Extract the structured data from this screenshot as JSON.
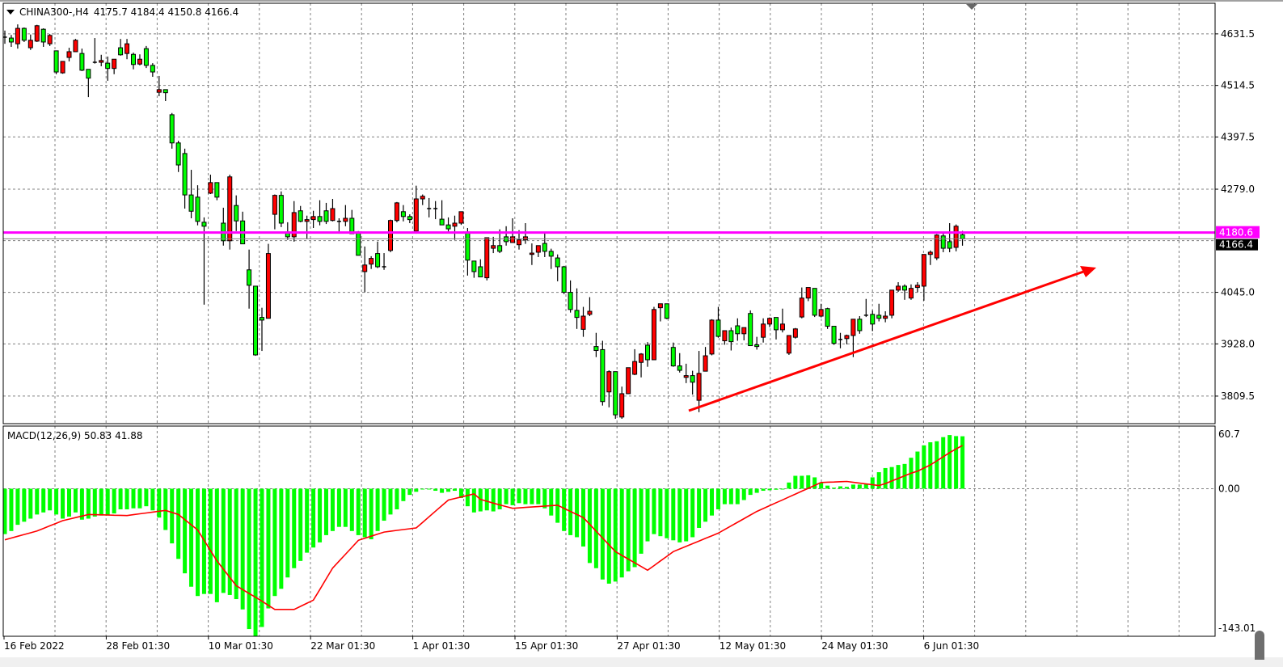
{
  "header": {
    "symbol_timeframe": "CHINA300-,H4",
    "ohlc": "4175.7 4184.4 4150.8 4166.4",
    "menu_icon": "triangle-down-icon"
  },
  "macd_label": "MACD(12,26,9) 50.83 41.88",
  "colors": {
    "bull": "#ff0000",
    "bear": "#00ff00",
    "macd_hist": "#00ff00",
    "signal": "#ff0000",
    "level_line": "#ff00ff",
    "trendline": "#ff0000",
    "grid": "#808080"
  },
  "chart_data": [
    {
      "type": "candlestick",
      "symbol": "CHINA300-",
      "timeframe": "H4",
      "ylim": [
        3747,
        4701
      ],
      "y_ticks": [
        "4631.5",
        "4514.5",
        "4397.5",
        "4279.0",
        "4045.0",
        "3928.0",
        "3809.5"
      ],
      "x_tick_labels": [
        "16 Feb 2022",
        "28 Feb 01:30",
        "10 Mar 01:30",
        "22 Mar 01:30",
        "1 Apr 01:30",
        "15 Apr 01:30",
        "27 Apr 01:30",
        "12 May 01:30",
        "24 May 01:30",
        "6 Jun 01:30"
      ],
      "horizontal_line": {
        "price": 4180.6,
        "label": "4180.6"
      },
      "bid_line": {
        "price": 4166.4,
        "label": "4166.4"
      },
      "ohlc": [
        [
          4622,
          4639,
          4609,
          4624
        ],
        [
          4622,
          4629,
          4602,
          4613
        ],
        [
          4609,
          4653,
          4598,
          4644
        ],
        [
          4644,
          4646,
          4613,
          4617
        ],
        [
          4600,
          4630,
          4595,
          4617
        ],
        [
          4615,
          4652,
          4613,
          4650
        ],
        [
          4642,
          4644,
          4602,
          4613
        ],
        [
          4609,
          4631,
          4604,
          4628
        ],
        [
          4593,
          4593,
          4540,
          4545
        ],
        [
          4543,
          4569,
          4541,
          4569
        ],
        [
          4578,
          4600,
          4569,
          4591
        ],
        [
          4591,
          4620,
          4591,
          4617
        ],
        [
          4587,
          4598,
          4547,
          4549
        ],
        [
          4551,
          4551,
          4488,
          4531
        ],
        [
          4567,
          4622,
          4564,
          4566
        ],
        [
          4567,
          4584,
          4558,
          4571
        ],
        [
          4565,
          4580,
          4525,
          4553
        ],
        [
          4553,
          4574,
          4540,
          4574
        ],
        [
          4600,
          4620,
          4582,
          4584
        ],
        [
          4587,
          4620,
          4574,
          4609
        ],
        [
          4585,
          4589,
          4551,
          4562
        ],
        [
          4563,
          4585,
          4560,
          4574
        ],
        [
          4598,
          4604,
          4554,
          4560
        ],
        [
          4560,
          4565,
          4534,
          4545
        ],
        [
          4499,
          4536,
          4490,
          4505
        ],
        [
          4505,
          4505,
          4479,
          4498
        ],
        [
          4448,
          4452,
          4371,
          4384
        ],
        [
          4384,
          4389,
          4318,
          4334
        ],
        [
          4360,
          4371,
          4235,
          4266
        ],
        [
          4266,
          4323,
          4213,
          4229
        ],
        [
          4261,
          4288,
          4197,
          4206
        ],
        [
          4204,
          4215,
          4017,
          4195
        ],
        [
          4270,
          4312,
          4268,
          4294
        ],
        [
          4294,
          4294,
          4254,
          4261
        ],
        [
          4202,
          4237,
          4151,
          4162
        ],
        [
          4162,
          4312,
          4142,
          4307
        ],
        [
          4242,
          4265,
          4184,
          4207
        ],
        [
          4207,
          4228,
          4155,
          4155
        ],
        [
          4096,
          4142,
          4008,
          4061
        ],
        [
          4059,
          4059,
          3901,
          3903
        ],
        [
          3988,
          4010,
          3912,
          3982
        ],
        [
          3986,
          4155,
          3986,
          4133
        ],
        [
          4222,
          4267,
          4188,
          4265
        ],
        [
          4265,
          4274,
          4193,
          4202
        ],
        [
          4182,
          4204,
          4164,
          4171
        ],
        [
          4171,
          4252,
          4160,
          4226
        ],
        [
          4230,
          4241,
          4204,
          4206
        ],
        [
          4206,
          4219,
          4166,
          4210
        ],
        [
          4210,
          4230,
          4191,
          4217
        ],
        [
          4217,
          4254,
          4197,
          4206
        ],
        [
          4230,
          4248,
          4200,
          4206
        ],
        [
          4208,
          4257,
          4206,
          4235
        ],
        [
          4206,
          4213,
          4178,
          4206
        ],
        [
          4206,
          4243,
          4195,
          4213
        ],
        [
          4213,
          4232,
          4178,
          4178
        ],
        [
          4182,
          4184,
          4129,
          4129
        ],
        [
          4092,
          4149,
          4045,
          4107
        ],
        [
          4109,
          4127,
          4098,
          4122
        ],
        [
          4133,
          4160,
          4100,
          4103
        ],
        [
          4103,
          4134,
          4096,
          4103
        ],
        [
          4140,
          4210,
          4136,
          4208
        ],
        [
          4208,
          4250,
          4204,
          4248
        ],
        [
          4228,
          4243,
          4206,
          4217
        ],
        [
          4217,
          4222,
          4202,
          4210
        ],
        [
          4184,
          4287,
          4178,
          4257
        ],
        [
          4257,
          4267,
          4243,
          4263
        ],
        [
          4235,
          4259,
          4215,
          4235
        ],
        [
          4235,
          4252,
          4211,
          4235
        ],
        [
          4211,
          4254,
          4198,
          4198
        ],
        [
          4198,
          4215,
          4180,
          4189
        ],
        [
          4195,
          4219,
          4164,
          4202
        ],
        [
          4202,
          4228,
          4198,
          4228
        ],
        [
          4182,
          4191,
          4083,
          4118
        ],
        [
          4116,
          4116,
          4078,
          4092
        ],
        [
          4103,
          4120,
          4080,
          4080
        ],
        [
          4078,
          4169,
          4072,
          4169
        ],
        [
          4145,
          4171,
          4134,
          4151
        ],
        [
          4151,
          4188,
          4134,
          4138
        ],
        [
          4171,
          4195,
          4151,
          4160
        ],
        [
          4158,
          4213,
          4158,
          4171
        ],
        [
          4153,
          4186,
          4142,
          4164
        ],
        [
          4164,
          4202,
          4155,
          4171
        ],
        [
          4131,
          4156,
          4107,
          4134
        ],
        [
          4136,
          4151,
          4125,
          4151
        ],
        [
          4156,
          4180,
          4125,
          4138
        ],
        [
          4138,
          4144,
          4098,
          4127
        ],
        [
          4123,
          4131,
          4070,
          4103
        ],
        [
          4103,
          4105,
          4041,
          4045
        ],
        [
          4045,
          4072,
          3999,
          4006
        ],
        [
          4004,
          4054,
          3962,
          3988
        ],
        [
          3961,
          4012,
          3944,
          3991
        ],
        [
          3995,
          4034,
          3991,
          4002
        ],
        [
          3922,
          3953,
          3898,
          3913
        ],
        [
          3915,
          3935,
          3788,
          3797
        ],
        [
          3819,
          3868,
          3784,
          3865
        ],
        [
          3865,
          3865,
          3758,
          3767
        ],
        [
          3762,
          3831,
          3758,
          3815
        ],
        [
          3815,
          3874,
          3815,
          3874
        ],
        [
          3859,
          3916,
          3857,
          3888
        ],
        [
          3886,
          3907,
          3852,
          3905
        ],
        [
          3925,
          3932,
          3876,
          3892
        ],
        [
          3892,
          4012,
          3892,
          4006
        ],
        [
          4010,
          4019,
          3979,
          4019
        ],
        [
          4019,
          4019,
          3984,
          3986
        ],
        [
          3920,
          3931,
          3876,
          3878
        ],
        [
          3878,
          3907,
          3863,
          3868
        ],
        [
          3852,
          3883,
          3839,
          3856
        ],
        [
          3856,
          3867,
          3813,
          3841
        ],
        [
          3800,
          3912,
          3773,
          3861
        ],
        [
          3866,
          3921,
          3866,
          3901
        ],
        [
          3905,
          3984,
          3902,
          3982
        ],
        [
          3982,
          4012,
          3942,
          3945
        ],
        [
          3935,
          3958,
          3926,
          3958
        ],
        [
          3958,
          3965,
          3913,
          3933
        ],
        [
          3969,
          3986,
          3935,
          3951
        ],
        [
          3951,
          3965,
          3936,
          3965
        ],
        [
          3997,
          4004,
          3924,
          3924
        ],
        [
          3926,
          3944,
          3915,
          3922
        ],
        [
          3943,
          3986,
          3931,
          3973
        ],
        [
          3973,
          3988,
          3966,
          3986
        ],
        [
          3988,
          3988,
          3938,
          3960
        ],
        [
          3960,
          4008,
          3954,
          3973
        ],
        [
          3907,
          3947,
          3903,
          3947
        ],
        [
          3943,
          3964,
          3940,
          3962
        ],
        [
          3989,
          4056,
          3986,
          4032
        ],
        [
          4032,
          4056,
          4025,
          4056
        ],
        [
          4054,
          4054,
          3989,
          3993
        ],
        [
          3991,
          4019,
          3988,
          4006
        ],
        [
          4008,
          4010,
          3962,
          3968
        ],
        [
          3968,
          3968,
          3926,
          3929
        ],
        [
          3938,
          3953,
          3918,
          3937
        ],
        [
          3940,
          3949,
          3927,
          3947
        ],
        [
          3947,
          3984,
          3898,
          3984
        ],
        [
          3984,
          3991,
          3951,
          3958
        ],
        [
          3993,
          4030,
          3989,
          3993
        ],
        [
          3995,
          4004,
          3957,
          3973
        ],
        [
          3993,
          4019,
          3979,
          3986
        ],
        [
          3986,
          4002,
          3977,
          3991
        ],
        [
          3993,
          4050,
          3986,
          4050
        ],
        [
          4050,
          4068,
          4046,
          4059
        ],
        [
          4059,
          4063,
          4028,
          4050
        ],
        [
          4032,
          4063,
          4028,
          4054
        ],
        [
          4056,
          4068,
          4045,
          4061
        ],
        [
          4059,
          4131,
          4026,
          4131
        ],
        [
          4131,
          4140,
          4107,
          4136
        ],
        [
          4123,
          4177,
          4118,
          4175
        ],
        [
          4173,
          4180,
          4136,
          4145
        ],
        [
          4160,
          4202,
          4136,
          4145
        ],
        [
          4147,
          4199,
          4138,
          4195
        ],
        [
          4175.7,
          4184.4,
          4150.8,
          4166.4
        ]
      ]
    },
    {
      "type": "bar+line",
      "indicator": "MACD(12,26,9)",
      "ylim": [
        -143.01,
        60.7
      ],
      "y_ticks": [
        "60.7",
        "0.00",
        "-143.01"
      ],
      "main_value": 50.83,
      "signal_value": 41.88,
      "histogram": [
        -44,
        -41,
        -35,
        -32,
        -29,
        -25,
        -23,
        -21,
        -25,
        -29,
        -27,
        -23,
        -30,
        -29,
        -27,
        -26,
        -26,
        -24,
        -20,
        -20,
        -19,
        -19,
        -17,
        -21,
        -28,
        -40,
        -53,
        -68,
        -82,
        -95,
        -104,
        -102,
        -102,
        -110,
        -101,
        -103,
        -107,
        -117,
        -136,
        -143,
        -134,
        -116,
        -104,
        -97,
        -86,
        -77,
        -70,
        -62,
        -57,
        -52,
        -45,
        -41,
        -37,
        -37,
        -41,
        -45,
        -47,
        -49,
        -41,
        -31,
        -25,
        -20,
        -12,
        -6,
        -3,
        -0.3,
        -0.5,
        -2,
        -4,
        -3,
        -2,
        -9,
        -17,
        -23,
        -22,
        -21,
        -22,
        -20,
        -15,
        -16,
        -14,
        -15,
        -15,
        -15,
        -19,
        -26,
        -33,
        -41,
        -45,
        -47,
        -56,
        -72,
        -77,
        -88,
        -92,
        -90,
        -86,
        -80,
        -76,
        -63,
        -51,
        -44,
        -46,
        -48,
        -50,
        -52,
        -51,
        -47,
        -38,
        -32,
        -26,
        -20,
        -15,
        -15,
        -15,
        -11,
        -6,
        -4,
        -2,
        -1.5,
        -1,
        -0.8,
        6,
        12.5,
        12.5,
        13,
        11,
        6,
        3,
        1,
        2.3,
        1.8,
        4,
        4,
        5,
        11,
        16,
        20,
        21,
        23,
        24,
        30,
        36,
        42,
        45,
        46,
        50,
        52,
        51,
        50.83
      ],
      "signal": [
        -49.5,
        -47.8,
        -46.1,
        -44.4,
        -42.7,
        -41,
        -38.5,
        -36,
        -33.5,
        -31,
        -29.5,
        -28,
        -26.5,
        -25,
        -25.2,
        -25.3,
        -25.5,
        -25.7,
        -25.8,
        -26,
        -25.2,
        -24.3,
        -23.5,
        -22.7,
        -21.8,
        -21,
        -23,
        -25,
        -30,
        -35,
        -40,
        -50,
        -60,
        -70,
        -78,
        -86,
        -94,
        -97.8,
        -101.5,
        -105.2,
        -109,
        -113,
        -117,
        -117,
        -117,
        -117,
        -114,
        -111,
        -108,
        -97.7,
        -87.3,
        -77,
        -70.2,
        -63.5,
        -56.8,
        -50,
        -48,
        -46,
        -44,
        -42,
        -41.2,
        -40.4,
        -39.6,
        -38.8,
        -38,
        -32.6,
        -27.2,
        -21.8,
        -16.4,
        -11,
        -9.5,
        -8,
        -6.5,
        -5,
        -10.4,
        -12.2,
        -14,
        -15.7,
        -17.3,
        -19,
        -18.6,
        -18.1,
        -17.7,
        -17.3,
        -16.9,
        -16.4,
        -16,
        -19,
        -22,
        -25,
        -28,
        -34.6,
        -41.2,
        -47.8,
        -54.4,
        -61,
        -64.6,
        -68.2,
        -71.8,
        -75.4,
        -79,
        -74.5,
        -70,
        -65.5,
        -61,
        -58.4,
        -55.9,
        -53.3,
        -50.7,
        -48.1,
        -45.6,
        -43,
        -39.5,
        -36,
        -32.5,
        -29,
        -25.5,
        -22,
        -19.2,
        -16.4,
        -13.6,
        -10.8,
        -8,
        -5.2,
        -2.4,
        0.4,
        3.2,
        6,
        6.3,
        6.5,
        6.8,
        7,
        6.2,
        5.4,
        4.6,
        3.8,
        3,
        5,
        7.5,
        10,
        12.5,
        15,
        17,
        20,
        23,
        27,
        31,
        35,
        38.5,
        41.88
      ]
    }
  ]
}
